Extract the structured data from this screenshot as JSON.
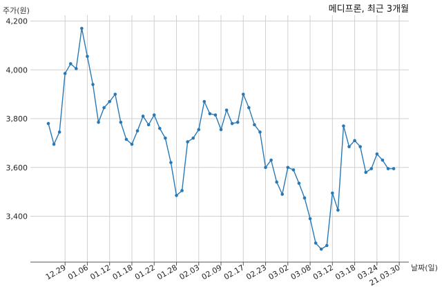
{
  "chart_data": {
    "type": "line",
    "title": "메디프론, 최근 3개월",
    "ylabel": "주가(원)",
    "xlabel": "날짜(일)",
    "ylim": [
      3220,
      4220
    ],
    "yticks": [
      3400,
      3600,
      3800,
      4000,
      4200
    ],
    "ytick_labels": [
      "3,400",
      "3,600",
      "3,800",
      "4,000",
      "4,200"
    ],
    "xtick_labels": [
      "12.29",
      "01.06",
      "01.12",
      "01.18",
      "01.22",
      "01.28",
      "02.03",
      "02.09",
      "02.17",
      "02.23",
      "03.02",
      "03.08",
      "03.12",
      "03.18",
      "03.24",
      "21.03.30"
    ],
    "xtick_index": [
      3,
      7,
      11,
      15,
      19,
      23,
      27,
      31,
      35,
      39,
      43,
      47,
      51,
      55,
      59,
      63
    ],
    "grid": true,
    "color": "#2878b5",
    "series": [
      {
        "name": "",
        "values": [
          3780,
          3695,
          3745,
          3985,
          4025,
          4005,
          4170,
          4055,
          3940,
          3785,
          3845,
          3870,
          3900,
          3785,
          3715,
          3695,
          3750,
          3810,
          3775,
          3815,
          3760,
          3720,
          3620,
          3485,
          3505,
          3705,
          3720,
          3755,
          3870,
          3820,
          3815,
          3755,
          3835,
          3780,
          3785,
          3900,
          3845,
          3775,
          3745,
          3600,
          3630,
          3540,
          3490,
          3600,
          3590,
          3535,
          3475,
          3390,
          3290,
          3265,
          3280,
          3495,
          3425,
          3770,
          3685,
          3710,
          3685,
          3580,
          3595,
          3655,
          3630,
          3595,
          3595
        ]
      }
    ]
  }
}
